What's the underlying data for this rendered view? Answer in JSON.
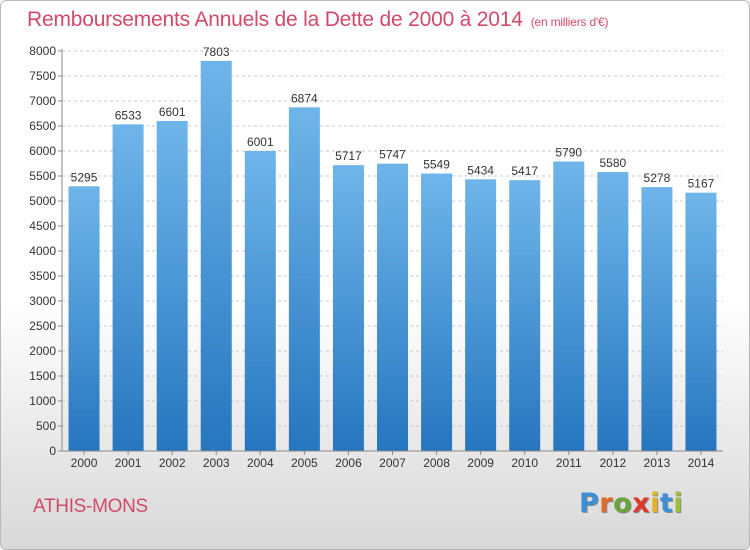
{
  "header": {
    "title": "Remboursements Annuels de la Dette de 2000 à 2014",
    "subtitle": "(en milliers d'€)"
  },
  "footer": {
    "commune": "ATHIS-MONS",
    "logo_letters": [
      "P",
      "r",
      "o",
      "x",
      "i",
      "t",
      "i"
    ],
    "logo_colors": [
      "#3c8fd6",
      "#e36b2a",
      "#6aa43c",
      "#e03a2b",
      "#e5b322",
      "#3c8fd6",
      "#9abd3a"
    ]
  },
  "chart_data": {
    "type": "bar",
    "title": "Remboursements Annuels de la Dette de 2000 à 2014",
    "unit": "(en milliers d'€)",
    "categories": [
      "2000",
      "2001",
      "2002",
      "2003",
      "2004",
      "2005",
      "2006",
      "2007",
      "2008",
      "2009",
      "2010",
      "2011",
      "2012",
      "2013",
      "2014"
    ],
    "values": [
      5295,
      6533,
      6601,
      7803,
      6001,
      6874,
      5717,
      5747,
      5549,
      5434,
      5417,
      5790,
      5580,
      5278,
      5167
    ],
    "data_labels": [
      "5295",
      "6533",
      "6601",
      "7803",
      "6001",
      "6874",
      "5717",
      "5747",
      "5549",
      "5434",
      "5417",
      "5790",
      "5580",
      "5278",
      "5167"
    ],
    "ylim": [
      0,
      8000
    ],
    "ytick_step": 500,
    "grid": true,
    "colors": {
      "bar_top": "#6fb5ea",
      "bar_bottom": "#2676bf",
      "grid": "#c8c8c8",
      "axis": "#8a8a8a"
    }
  }
}
